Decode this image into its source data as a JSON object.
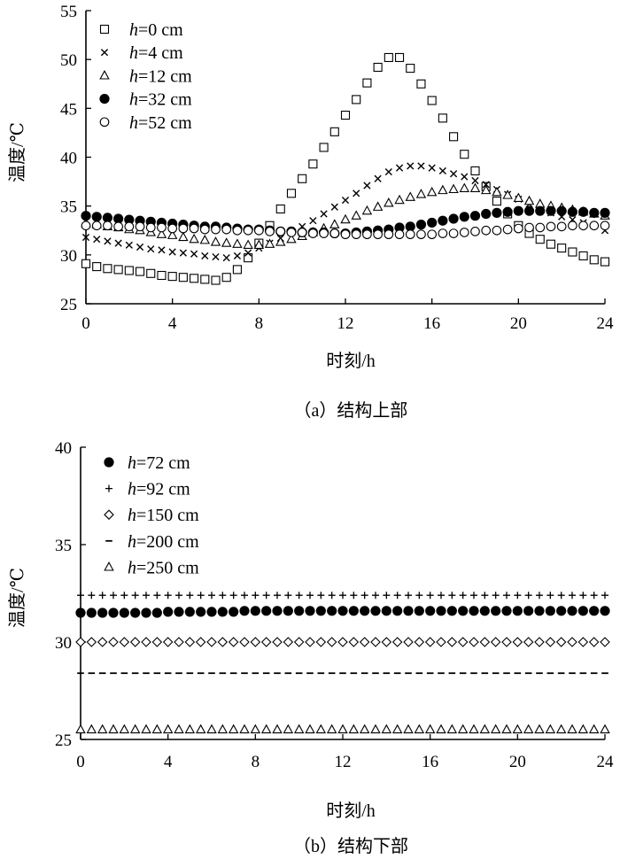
{
  "chart_data": [
    {
      "type": "scatter",
      "caption": "（a）结构上部",
      "xlabel": "时刻/h",
      "ylabel": "温度/℃",
      "xlim": [
        0,
        24
      ],
      "ylim": [
        25,
        55
      ],
      "xticks": [
        0,
        4,
        8,
        12,
        16,
        20,
        24
      ],
      "yticks": [
        25,
        30,
        35,
        40,
        45,
        50,
        55
      ],
      "legend_position": "top-left",
      "series": [
        {
          "name": "h=0 cm",
          "label_var": "h",
          "label_rest": "=0 cm",
          "marker": "square",
          "x": [
            0,
            0.5,
            1,
            1.5,
            2,
            2.5,
            3,
            3.5,
            4,
            4.5,
            5,
            5.5,
            6,
            6.5,
            7,
            7.5,
            8,
            8.5,
            9,
            9.5,
            10,
            10.5,
            11,
            11.5,
            12,
            12.5,
            13,
            13.5,
            14,
            14.5,
            15,
            15.5,
            16,
            16.5,
            17,
            17.5,
            18,
            18.5,
            19,
            19.5,
            20,
            20.5,
            21,
            21.5,
            22,
            22.5,
            23,
            23.5,
            24
          ],
          "y": [
            29.1,
            28.8,
            28.6,
            28.5,
            28.4,
            28.3,
            28.1,
            27.9,
            27.8,
            27.7,
            27.6,
            27.5,
            27.4,
            27.7,
            28.5,
            29.7,
            31.2,
            33,
            34.7,
            36.3,
            37.8,
            39.3,
            41,
            42.6,
            44.3,
            45.9,
            47.6,
            49.2,
            50.2,
            50.2,
            49.1,
            47.5,
            45.8,
            44,
            42.1,
            40.3,
            38.6,
            37,
            35.5,
            34.2,
            33,
            32.2,
            31.6,
            31.1,
            30.7,
            30.3,
            29.9,
            29.5,
            29.3
          ]
        },
        {
          "name": "h=4 cm",
          "label_var": "h",
          "label_rest": "=4 cm",
          "marker": "cross",
          "x": [
            0,
            0.5,
            1,
            1.5,
            2,
            2.5,
            3,
            3.5,
            4,
            4.5,
            5,
            5.5,
            6,
            6.5,
            7,
            7.5,
            8,
            8.5,
            9,
            9.5,
            10,
            10.5,
            11,
            11.5,
            12,
            12.5,
            13,
            13.5,
            14,
            14.5,
            15,
            15.5,
            16,
            16.5,
            17,
            17.5,
            18,
            18.5,
            19,
            19.5,
            20,
            20.5,
            21,
            21.5,
            22,
            22.5,
            23,
            23.5,
            24
          ],
          "y": [
            31.8,
            31.6,
            31.4,
            31.2,
            31,
            30.8,
            30.6,
            30.5,
            30.3,
            30.2,
            30.1,
            29.9,
            29.8,
            29.7,
            29.9,
            30.2,
            30.7,
            31.2,
            31.7,
            32.3,
            32.9,
            33.5,
            34.2,
            34.9,
            35.6,
            36.3,
            37.1,
            37.8,
            38.5,
            38.9,
            39.1,
            39.1,
            38.9,
            38.6,
            38.3,
            38,
            37.6,
            37.2,
            36.7,
            36.2,
            35.7,
            35.2,
            34.7,
            34.3,
            33.9,
            33.6,
            33.3,
            33,
            32.5
          ]
        },
        {
          "name": "h=12 cm",
          "label_var": "h",
          "label_rest": "=12 cm",
          "marker": "triangle",
          "x": [
            0,
            0.5,
            1,
            1.5,
            2,
            2.5,
            3,
            3.5,
            4,
            4.5,
            5,
            5.5,
            6,
            6.5,
            7,
            7.5,
            8,
            8.5,
            9,
            9.5,
            10,
            10.5,
            11,
            11.5,
            12,
            12.5,
            13,
            13.5,
            14,
            14.5,
            15,
            15.5,
            16,
            16.5,
            17,
            17.5,
            18,
            18.5,
            19,
            19.5,
            20,
            20.5,
            21,
            21.5,
            22,
            22.5,
            23,
            23.5,
            24
          ],
          "y": [
            33.2,
            33.1,
            32.9,
            32.8,
            32.6,
            32.5,
            32.3,
            32.1,
            32,
            31.8,
            31.6,
            31.5,
            31.3,
            31.2,
            31.1,
            31,
            31,
            31.1,
            31.3,
            31.6,
            31.9,
            32.3,
            32.7,
            33.1,
            33.6,
            34,
            34.5,
            34.9,
            35.3,
            35.6,
            35.9,
            36.2,
            36.4,
            36.6,
            36.7,
            36.8,
            36.8,
            36.6,
            36.4,
            36.1,
            35.8,
            35.5,
            35.2,
            35,
            34.8,
            34.6,
            34.4,
            34.2,
            34
          ]
        },
        {
          "name": "h=32 cm",
          "label_var": "h",
          "label_rest": "=32 cm",
          "marker": "filled-circle",
          "x": [
            0,
            0.5,
            1,
            1.5,
            2,
            2.5,
            3,
            3.5,
            4,
            4.5,
            5,
            5.5,
            6,
            6.5,
            7,
            7.5,
            8,
            8.5,
            9,
            9.5,
            10,
            10.5,
            11,
            11.5,
            12,
            12.5,
            13,
            13.5,
            14,
            14.5,
            15,
            15.5,
            16,
            16.5,
            17,
            17.5,
            18,
            18.5,
            19,
            19.5,
            20,
            20.5,
            21,
            21.5,
            22,
            22.5,
            23,
            23.5,
            24
          ],
          "y": [
            34,
            33.9,
            33.8,
            33.7,
            33.6,
            33.5,
            33.4,
            33.3,
            33.2,
            33.1,
            33,
            32.9,
            32.9,
            32.8,
            32.7,
            32.6,
            32.6,
            32.5,
            32.4,
            32.4,
            32.3,
            32.3,
            32.3,
            32.2,
            32.2,
            32.3,
            32.4,
            32.5,
            32.6,
            32.8,
            32.9,
            33.1,
            33.3,
            33.5,
            33.7,
            33.9,
            34,
            34.2,
            34.3,
            34.4,
            34.5,
            34.5,
            34.5,
            34.5,
            34.5,
            34.4,
            34.4,
            34.3,
            34.3
          ]
        },
        {
          "name": "h=52 cm",
          "label_var": "h",
          "label_rest": "=52 cm",
          "marker": "circle",
          "x": [
            0,
            0.5,
            1,
            1.5,
            2,
            2.5,
            3,
            3.5,
            4,
            4.5,
            5,
            5.5,
            6,
            6.5,
            7,
            7.5,
            8,
            8.5,
            9,
            9.5,
            10,
            10.5,
            11,
            11.5,
            12,
            12.5,
            13,
            13.5,
            14,
            14.5,
            15,
            15.5,
            16,
            16.5,
            17,
            17.5,
            18,
            18.5,
            19,
            19.5,
            20,
            20.5,
            21,
            21.5,
            22,
            22.5,
            23,
            23.5,
            24
          ],
          "y": [
            33,
            33,
            33,
            32.9,
            32.9,
            32.9,
            32.8,
            32.8,
            32.7,
            32.7,
            32.7,
            32.6,
            32.6,
            32.6,
            32.5,
            32.5,
            32.5,
            32.4,
            32.4,
            32.3,
            32.3,
            32.2,
            32.2,
            32.2,
            32.1,
            32.1,
            32.1,
            32.1,
            32.1,
            32.1,
            32.1,
            32.1,
            32.1,
            32.2,
            32.2,
            32.3,
            32.4,
            32.5,
            32.5,
            32.6,
            32.7,
            32.8,
            32.8,
            32.9,
            32.9,
            33,
            33,
            33,
            33
          ]
        }
      ]
    },
    {
      "type": "scatter",
      "caption": "（b）结构下部",
      "xlabel": "时刻/h",
      "ylabel": "温度/℃",
      "xlim": [
        0,
        24
      ],
      "ylim": [
        25,
        40
      ],
      "xticks": [
        0,
        4,
        8,
        12,
        16,
        20,
        24
      ],
      "yticks": [
        25,
        30,
        35,
        40
      ],
      "legend_position": "top-left",
      "series": [
        {
          "name": "h=72 cm",
          "label_var": "h",
          "label_rest": "=72 cm",
          "marker": "filled-circle",
          "x": [
            0,
            0.5,
            1,
            1.5,
            2,
            2.5,
            3,
            3.5,
            4,
            4.5,
            5,
            5.5,
            6,
            6.5,
            7,
            7.5,
            8,
            8.5,
            9,
            9.5,
            10,
            10.5,
            11,
            11.5,
            12,
            12.5,
            13,
            13.5,
            14,
            14.5,
            15,
            15.5,
            16,
            16.5,
            17,
            17.5,
            18,
            18.5,
            19,
            19.5,
            20,
            20.5,
            21,
            21.5,
            22,
            22.5,
            23,
            23.5,
            24
          ],
          "y": [
            31.5,
            31.5,
            31.5,
            31.5,
            31.5,
            31.5,
            31.5,
            31.5,
            31.55,
            31.55,
            31.55,
            31.55,
            31.55,
            31.55,
            31.55,
            31.6,
            31.6,
            31.6,
            31.6,
            31.6,
            31.6,
            31.6,
            31.6,
            31.6,
            31.6,
            31.6,
            31.6,
            31.6,
            31.6,
            31.6,
            31.6,
            31.6,
            31.6,
            31.6,
            31.6,
            31.6,
            31.6,
            31.6,
            31.6,
            31.6,
            31.6,
            31.6,
            31.6,
            31.6,
            31.6,
            31.6,
            31.6,
            31.6,
            31.6
          ]
        },
        {
          "name": "h=92 cm",
          "label_var": "h",
          "label_rest": "=92 cm",
          "marker": "plus",
          "x": [
            0,
            0.5,
            1,
            1.5,
            2,
            2.5,
            3,
            3.5,
            4,
            4.5,
            5,
            5.5,
            6,
            6.5,
            7,
            7.5,
            8,
            8.5,
            9,
            9.5,
            10,
            10.5,
            11,
            11.5,
            12,
            12.5,
            13,
            13.5,
            14,
            14.5,
            15,
            15.5,
            16,
            16.5,
            17,
            17.5,
            18,
            18.5,
            19,
            19.5,
            20,
            20.5,
            21,
            21.5,
            22,
            22.5,
            23,
            23.5,
            24
          ],
          "y": [
            32.4,
            32.4,
            32.4,
            32.4,
            32.4,
            32.4,
            32.4,
            32.4,
            32.4,
            32.4,
            32.4,
            32.4,
            32.4,
            32.4,
            32.4,
            32.4,
            32.4,
            32.4,
            32.4,
            32.4,
            32.4,
            32.4,
            32.4,
            32.4,
            32.4,
            32.4,
            32.4,
            32.4,
            32.4,
            32.4,
            32.4,
            32.4,
            32.4,
            32.4,
            32.4,
            32.4,
            32.4,
            32.4,
            32.4,
            32.4,
            32.4,
            32.4,
            32.4,
            32.4,
            32.4,
            32.4,
            32.4,
            32.4,
            32.4
          ]
        },
        {
          "name": "h=150 cm",
          "label_var": "h",
          "label_rest": "=150 cm",
          "marker": "diamond",
          "x": [
            0,
            0.5,
            1,
            1.5,
            2,
            2.5,
            3,
            3.5,
            4,
            4.5,
            5,
            5.5,
            6,
            6.5,
            7,
            7.5,
            8,
            8.5,
            9,
            9.5,
            10,
            10.5,
            11,
            11.5,
            12,
            12.5,
            13,
            13.5,
            14,
            14.5,
            15,
            15.5,
            16,
            16.5,
            17,
            17.5,
            18,
            18.5,
            19,
            19.5,
            20,
            20.5,
            21,
            21.5,
            22,
            22.5,
            23,
            23.5,
            24
          ],
          "y": [
            30,
            30,
            30,
            30,
            30,
            30,
            30,
            30,
            30,
            30,
            30,
            30,
            30,
            30,
            30,
            30,
            30,
            30,
            30,
            30,
            30,
            30,
            30,
            30,
            30,
            30,
            30,
            30,
            30,
            30,
            30,
            30,
            30,
            30,
            30,
            30,
            30,
            30,
            30,
            30,
            30,
            30,
            30,
            30,
            30,
            30,
            30,
            30,
            30
          ]
        },
        {
          "name": "h=200 cm",
          "label_var": "h",
          "label_rest": "=200 cm",
          "marker": "dash",
          "x": [
            0,
            0.5,
            1,
            1.5,
            2,
            2.5,
            3,
            3.5,
            4,
            4.5,
            5,
            5.5,
            6,
            6.5,
            7,
            7.5,
            8,
            8.5,
            9,
            9.5,
            10,
            10.5,
            11,
            11.5,
            12,
            12.5,
            13,
            13.5,
            14,
            14.5,
            15,
            15.5,
            16,
            16.5,
            17,
            17.5,
            18,
            18.5,
            19,
            19.5,
            20,
            20.5,
            21,
            21.5,
            22,
            22.5,
            23,
            23.5,
            24
          ],
          "y": [
            28.4,
            28.4,
            28.4,
            28.4,
            28.4,
            28.4,
            28.4,
            28.4,
            28.4,
            28.4,
            28.4,
            28.4,
            28.4,
            28.4,
            28.4,
            28.4,
            28.4,
            28.4,
            28.4,
            28.4,
            28.4,
            28.4,
            28.4,
            28.4,
            28.4,
            28.4,
            28.4,
            28.4,
            28.4,
            28.4,
            28.4,
            28.4,
            28.4,
            28.4,
            28.4,
            28.4,
            28.4,
            28.4,
            28.4,
            28.4,
            28.4,
            28.4,
            28.4,
            28.4,
            28.4,
            28.4,
            28.4,
            28.4,
            28.4
          ]
        },
        {
          "name": "h=250 cm",
          "label_var": "h",
          "label_rest": "=250 cm",
          "marker": "triangle",
          "x": [
            0,
            0.5,
            1,
            1.5,
            2,
            2.5,
            3,
            3.5,
            4,
            4.5,
            5,
            5.5,
            6,
            6.5,
            7,
            7.5,
            8,
            8.5,
            9,
            9.5,
            10,
            10.5,
            11,
            11.5,
            12,
            12.5,
            13,
            13.5,
            14,
            14.5,
            15,
            15.5,
            16,
            16.5,
            17,
            17.5,
            18,
            18.5,
            19,
            19.5,
            20,
            20.5,
            21,
            21.5,
            22,
            22.5,
            23,
            23.5,
            24
          ],
          "y": [
            25.5,
            25.5,
            25.5,
            25.5,
            25.5,
            25.5,
            25.5,
            25.5,
            25.5,
            25.5,
            25.5,
            25.5,
            25.5,
            25.5,
            25.5,
            25.5,
            25.5,
            25.5,
            25.5,
            25.5,
            25.5,
            25.5,
            25.5,
            25.5,
            25.5,
            25.5,
            25.5,
            25.5,
            25.5,
            25.5,
            25.5,
            25.5,
            25.5,
            25.5,
            25.5,
            25.5,
            25.5,
            25.5,
            25.5,
            25.5,
            25.5,
            25.5,
            25.5,
            25.5,
            25.5,
            25.5,
            25.5,
            25.5,
            25.5
          ]
        }
      ]
    }
  ]
}
